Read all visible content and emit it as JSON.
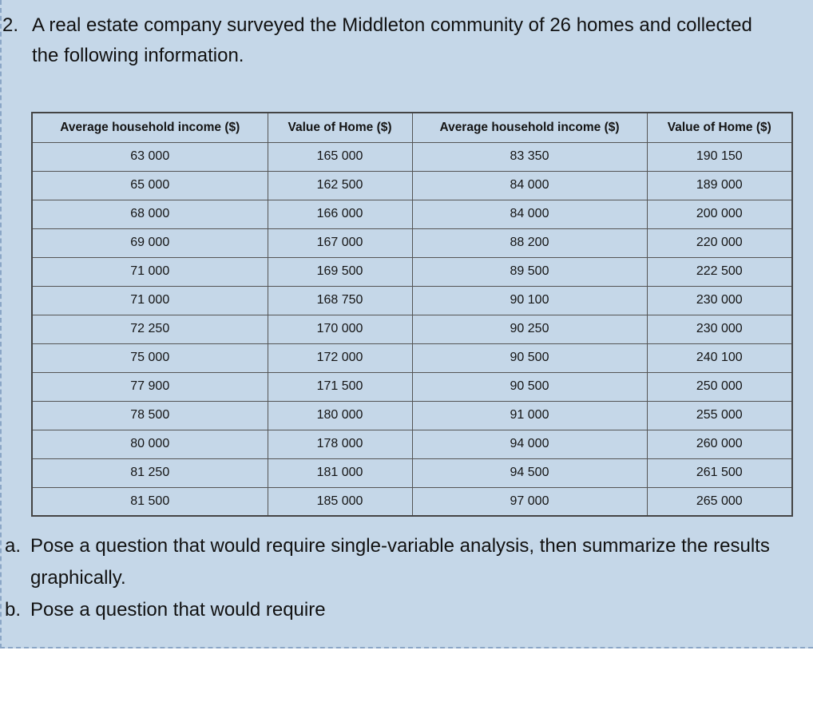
{
  "page": {
    "background_color": "#c5d7e8",
    "dashed_border_color": "#8ba6c6",
    "table_border_color": "#555555"
  },
  "question": {
    "number": "2.",
    "text": "A real estate company surveyed the Middleton community of 26 homes and collected the following information."
  },
  "table": {
    "headers": [
      "Average household income ($)",
      "Value of Home ($)",
      "Average household income ($)",
      "Value of Home ($)"
    ],
    "rows": [
      [
        "63 000",
        "165 000",
        "83 350",
        "190 150"
      ],
      [
        "65 000",
        "162 500",
        "84 000",
        "189 000"
      ],
      [
        "68 000",
        "166 000",
        "84 000",
        "200 000"
      ],
      [
        "69 000",
        "167 000",
        "88 200",
        "220 000"
      ],
      [
        "71 000",
        "169 500",
        "89 500",
        "222 500"
      ],
      [
        "71 000",
        "168 750",
        "90 100",
        "230 000"
      ],
      [
        "72 250",
        "170 000",
        "90 250",
        "230 000"
      ],
      [
        "75 000",
        "172 000",
        "90 500",
        "240 100"
      ],
      [
        "77 900",
        "171 500",
        "90 500",
        "250 000"
      ],
      [
        "78 500",
        "180 000",
        "91 000",
        "255 000"
      ],
      [
        "80 000",
        "178 000",
        "94 000",
        "260 000"
      ],
      [
        "81 250",
        "181 000",
        "94 500",
        "261 500"
      ],
      [
        "81 500",
        "185 000",
        "97 000",
        "265 000"
      ]
    ]
  },
  "subquestions": [
    {
      "label": "a.",
      "text": "Pose a question that would require single-variable analysis, then summarize the results graphically."
    },
    {
      "label": "b.",
      "text": "Pose a question that would require"
    }
  ]
}
